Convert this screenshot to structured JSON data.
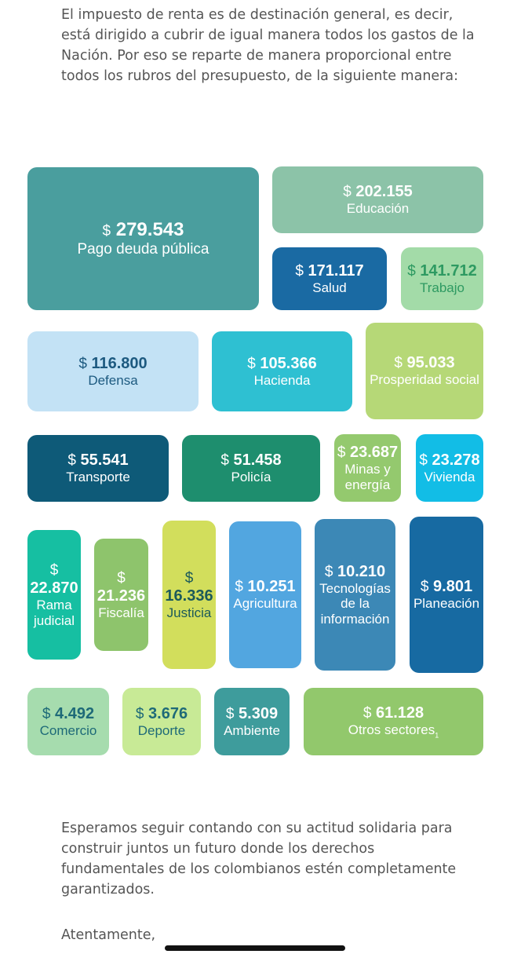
{
  "intro_text": "El impuesto de renta es de destinación general, es decir, está dirigido a cubrir de igual manera todos los gastos de la Nación. Por eso se reparte de manera proporcional entre todos los rubros del presupuesto, de la siguiente manera:",
  "currency_symbol": "$",
  "budget_items": [
    {
      "amount": "279.543",
      "label": "Pago deuda pública",
      "color": "#4a9e9e",
      "text_color": "#ffffff"
    },
    {
      "amount": "202.155",
      "label": "Educación",
      "color": "#8cc3a8",
      "text_color": "#ffffff"
    },
    {
      "amount": "171.117",
      "label": "Salud",
      "color": "#1a6aa3",
      "text_color": "#ffffff"
    },
    {
      "amount": "141.712",
      "label": "Trabajo",
      "color": "#a3dba8",
      "text_color": "#2e9a62"
    },
    {
      "amount": "116.800",
      "label": "Defensa",
      "color": "#c3e2f5",
      "text_color": "#1d5a80"
    },
    {
      "amount": "105.366",
      "label": "Hacienda",
      "color": "#2ec0d2",
      "text_color": "#ffffff"
    },
    {
      "amount": "95.033",
      "label": "Prosperidad social",
      "color": "#b6d877",
      "text_color": "#ffffff"
    },
    {
      "amount": "55.541",
      "label": "Transporte",
      "color": "#0e5a78",
      "text_color": "#ffffff"
    },
    {
      "amount": "51.458",
      "label": "Policía",
      "color": "#1e8e6e",
      "text_color": "#ffffff"
    },
    {
      "amount": "23.687",
      "label": "Minas y energía",
      "color": "#94c96e",
      "text_color": "#ffffff"
    },
    {
      "amount": "23.278",
      "label": "Vivienda",
      "color": "#12bde6",
      "text_color": "#ffffff"
    },
    {
      "amount": "22.870",
      "label": "Rama judicial",
      "color": "#16bfa2",
      "text_color": "#ffffff"
    },
    {
      "amount": "21.236",
      "label": "Fiscalía",
      "color": "#8ec46c",
      "text_color": "#ffffff"
    },
    {
      "amount": "16.336",
      "label": "Justicia",
      "color": "#d2de5c",
      "text_color": "#1c5a5a"
    },
    {
      "amount": "10.251",
      "label": "Agricultura",
      "color": "#52a6e0",
      "text_color": "#ffffff"
    },
    {
      "amount": "10.210",
      "label": "Tecnologías de la información",
      "color": "#3c88b6",
      "text_color": "#ffffff"
    },
    {
      "amount": "9.801",
      "label": "Planeación",
      "color": "#176aa2",
      "text_color": "#ffffff"
    },
    {
      "amount": "4.492",
      "label": "Comercio",
      "color": "#a6dcae",
      "text_color": "#1e6a78"
    },
    {
      "amount": "3.676",
      "label": "Deporte",
      "color": "#c8ea96",
      "text_color": "#1e6a78"
    },
    {
      "amount": "5.309",
      "label": "Ambiente",
      "color": "#3e9c9c",
      "text_color": "#ffffff"
    },
    {
      "amount": "61.128",
      "label": "Otros sectores",
      "footnote": "1",
      "color": "#92c86c",
      "text_color": "#ffffff"
    }
  ],
  "closing_text": "Esperamos seguir contando con su actitud solidaria para construir juntos un futuro donde los derechos fundamentales de los colombianos estén completamente garantizados.",
  "signoff": "Atentamente,"
}
